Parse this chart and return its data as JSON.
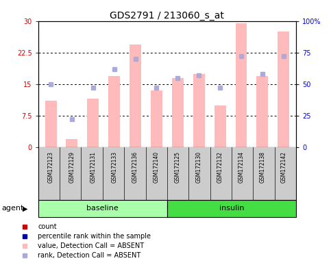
{
  "title": "GDS2791 / 213060_s_at",
  "samples": [
    "GSM172123",
    "GSM172129",
    "GSM172131",
    "GSM172133",
    "GSM172136",
    "GSM172140",
    "GSM172125",
    "GSM172130",
    "GSM172132",
    "GSM172134",
    "GSM172138",
    "GSM172142"
  ],
  "bar_values": [
    11.0,
    2.0,
    11.5,
    17.0,
    24.5,
    13.5,
    16.5,
    17.5,
    10.0,
    29.5,
    17.0,
    27.5
  ],
  "rank_values_pct": [
    50.0,
    22.0,
    47.0,
    62.0,
    70.0,
    47.0,
    55.0,
    57.0,
    47.0,
    72.0,
    58.0,
    72.0
  ],
  "bar_color": "#ffbbbb",
  "rank_color": "#aaaadd",
  "ylim_left": [
    0,
    30
  ],
  "ylim_right": [
    0,
    100
  ],
  "yticks_left": [
    0,
    7.5,
    15,
    22.5,
    30
  ],
  "ytick_labels_left": [
    "0",
    "7.5",
    "15",
    "22.5",
    "30"
  ],
  "yticks_right": [
    0,
    25,
    50,
    75,
    100
  ],
  "ytick_labels_right": [
    "0",
    "25",
    "50",
    "75",
    "100%"
  ],
  "group_labels": [
    "baseline",
    "insulin"
  ],
  "group_counts": [
    6,
    6
  ],
  "group_color_baseline": "#aaffaa",
  "group_color_insulin": "#44dd44",
  "agent_label": "agent",
  "legend_colors": [
    "#cc0000",
    "#0000aa",
    "#ffbbbb",
    "#aaaadd"
  ],
  "legend_labels": [
    "count",
    "percentile rank within the sample",
    "value, Detection Call = ABSENT",
    "rank, Detection Call = ABSENT"
  ],
  "bg_color": "#ffffff",
  "sample_bg": "#cccccc",
  "title_fontsize": 10,
  "tick_fontsize": 7,
  "legend_fontsize": 7,
  "group_fontsize": 8,
  "agent_fontsize": 8
}
